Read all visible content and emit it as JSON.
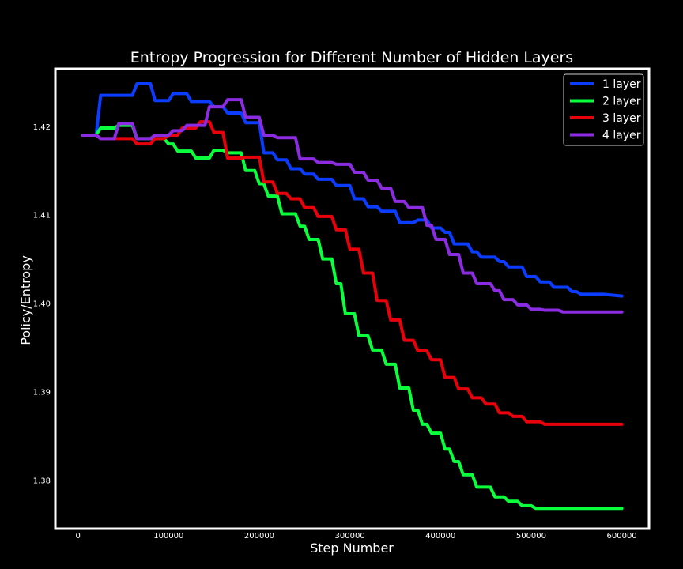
{
  "chart_data": {
    "type": "line",
    "title": "Entropy Progression for Different Number of Hidden Layers",
    "xlabel": "Step Number",
    "ylabel": "Policy/Entropy",
    "xlim": [
      -25000,
      630000
    ],
    "ylim": [
      1.3745,
      1.4265
    ],
    "xticks": [
      0,
      100000,
      200000,
      300000,
      400000,
      500000,
      600000
    ],
    "xtick_labels": [
      "0",
      "100000",
      "200000",
      "300000",
      "400000",
      "500000",
      "600000"
    ],
    "yticks": [
      1.38,
      1.39,
      1.4,
      1.41,
      1.42
    ],
    "ytick_labels": [
      "1.38",
      "1.39",
      "1.40",
      "1.41",
      "1.42"
    ],
    "grid": false,
    "legend_position": "top-right",
    "series": [
      {
        "name": "1 layer",
        "color": "#0a3dff",
        "x": [
          5000,
          20000,
          25000,
          60000,
          65000,
          80000,
          85000,
          100000,
          105000,
          120000,
          125000,
          145000,
          150000,
          160000,
          165000,
          180000,
          185000,
          200000,
          205000,
          215000,
          220000,
          230000,
          235000,
          245000,
          250000,
          260000,
          265000,
          280000,
          285000,
          300000,
          305000,
          315000,
          320000,
          330000,
          335000,
          350000,
          355000,
          370000,
          375000,
          385000,
          390000,
          400000,
          405000,
          410000,
          415000,
          430000,
          435000,
          440000,
          445000,
          460000,
          465000,
          470000,
          475000,
          490000,
          495000,
          505000,
          510000,
          520000,
          525000,
          540000,
          545000,
          550000,
          555000,
          575000,
          580000,
          600000
        ],
        "y": [
          1.419,
          1.419,
          1.4235,
          1.4235,
          1.4248,
          1.4248,
          1.4229,
          1.4229,
          1.4237,
          1.4237,
          1.4228,
          1.4228,
          1.4222,
          1.4222,
          1.4215,
          1.4215,
          1.4204,
          1.4204,
          1.417,
          1.417,
          1.4162,
          1.4162,
          1.4152,
          1.4152,
          1.4146,
          1.4146,
          1.414,
          1.414,
          1.4133,
          1.4133,
          1.4118,
          1.4118,
          1.4109,
          1.4109,
          1.4104,
          1.4104,
          1.4091,
          1.4091,
          1.4094,
          1.4094,
          1.4085,
          1.4085,
          1.408,
          1.408,
          1.4067,
          1.4067,
          1.4058,
          1.4058,
          1.4052,
          1.4052,
          1.4047,
          1.4047,
          1.4041,
          1.4041,
          1.403,
          1.403,
          1.4024,
          1.4024,
          1.4018,
          1.4018,
          1.4013,
          1.4013,
          1.401,
          1.401,
          1.401,
          1.4008
        ]
      },
      {
        "name": "2 layer",
        "color": "#0aff3c",
        "x": [
          5000,
          20000,
          25000,
          40000,
          45000,
          60000,
          65000,
          95000,
          100000,
          105000,
          110000,
          125000,
          130000,
          145000,
          150000,
          160000,
          165000,
          180000,
          185000,
          195000,
          200000,
          205000,
          210000,
          220000,
          225000,
          240000,
          245000,
          250000,
          255000,
          265000,
          270000,
          280000,
          285000,
          290000,
          295000,
          305000,
          310000,
          320000,
          325000,
          335000,
          340000,
          350000,
          355000,
          365000,
          370000,
          375000,
          380000,
          385000,
          390000,
          400000,
          405000,
          410000,
          415000,
          420000,
          425000,
          435000,
          440000,
          455000,
          460000,
          470000,
          475000,
          485000,
          490000,
          500000,
          505000,
          515000,
          520000,
          530000,
          535000,
          545000,
          550000,
          560000,
          565000,
          580000,
          585000,
          600000
        ],
        "y": [
          1.419,
          1.419,
          1.4198,
          1.4198,
          1.4201,
          1.4201,
          1.4186,
          1.4186,
          1.418,
          1.418,
          1.4172,
          1.4172,
          1.4164,
          1.4164,
          1.4173,
          1.4173,
          1.417,
          1.417,
          1.415,
          1.415,
          1.4135,
          1.4135,
          1.4121,
          1.4121,
          1.4101,
          1.4101,
          1.4087,
          1.4087,
          1.4072,
          1.4072,
          1.405,
          1.405,
          1.4022,
          1.4022,
          1.3988,
          1.3988,
          1.3963,
          1.3963,
          1.3947,
          1.3947,
          1.3931,
          1.3931,
          1.3904,
          1.3904,
          1.3879,
          1.3879,
          1.3863,
          1.3863,
          1.3853,
          1.3853,
          1.3835,
          1.3835,
          1.3821,
          1.3821,
          1.3806,
          1.3806,
          1.3792,
          1.3792,
          1.3781,
          1.3781,
          1.3776,
          1.3776,
          1.3771,
          1.3771,
          1.3768,
          1.3768,
          1.3768,
          1.3768,
          1.3768,
          1.3768,
          1.3768,
          1.3768,
          1.3768,
          1.3768,
          1.3768,
          1.3768
        ]
      },
      {
        "name": "3 layer",
        "color": "#e8000b",
        "x": [
          5000,
          20000,
          25000,
          60000,
          65000,
          80000,
          85000,
          95000,
          100000,
          110000,
          115000,
          130000,
          135000,
          145000,
          150000,
          160000,
          165000,
          180000,
          185000,
          200000,
          205000,
          215000,
          220000,
          230000,
          235000,
          245000,
          250000,
          260000,
          265000,
          280000,
          285000,
          295000,
          300000,
          310000,
          315000,
          325000,
          330000,
          340000,
          345000,
          355000,
          360000,
          370000,
          375000,
          385000,
          390000,
          400000,
          405000,
          415000,
          420000,
          430000,
          435000,
          445000,
          450000,
          460000,
          465000,
          475000,
          480000,
          490000,
          495000,
          510000,
          515000,
          525000,
          530000,
          545000,
          550000,
          565000,
          570000,
          580000,
          585000,
          600000
        ],
        "y": [
          1.419,
          1.419,
          1.4186,
          1.4186,
          1.418,
          1.418,
          1.4186,
          1.4186,
          1.419,
          1.419,
          1.4198,
          1.4198,
          1.4205,
          1.4205,
          1.4193,
          1.4193,
          1.4164,
          1.4164,
          1.4165,
          1.4165,
          1.4137,
          1.4137,
          1.4124,
          1.4124,
          1.4118,
          1.4118,
          1.4108,
          1.4108,
          1.4098,
          1.4098,
          1.4083,
          1.4083,
          1.4061,
          1.4061,
          1.4034,
          1.4034,
          1.4003,
          1.4003,
          1.3981,
          1.3981,
          1.3958,
          1.3958,
          1.3946,
          1.3946,
          1.3936,
          1.3936,
          1.3916,
          1.3916,
          1.3903,
          1.3903,
          1.3893,
          1.3893,
          1.3886,
          1.3886,
          1.3876,
          1.3876,
          1.3872,
          1.3872,
          1.3866,
          1.3866,
          1.3863,
          1.3863,
          1.3863,
          1.3863,
          1.3863,
          1.3863,
          1.3863,
          1.3863,
          1.3863,
          1.3863
        ]
      },
      {
        "name": "4 layer",
        "color": "#8b2be2",
        "x": [
          5000,
          20000,
          25000,
          40000,
          45000,
          60000,
          65000,
          80000,
          85000,
          100000,
          105000,
          115000,
          120000,
          140000,
          145000,
          160000,
          165000,
          180000,
          185000,
          200000,
          205000,
          215000,
          220000,
          240000,
          245000,
          260000,
          265000,
          280000,
          285000,
          300000,
          305000,
          315000,
          320000,
          330000,
          335000,
          345000,
          350000,
          360000,
          365000,
          380000,
          385000,
          390000,
          395000,
          405000,
          410000,
          420000,
          425000,
          435000,
          440000,
          455000,
          460000,
          465000,
          470000,
          480000,
          485000,
          495000,
          500000,
          510000,
          515000,
          530000,
          535000,
          540000,
          545000,
          565000,
          570000,
          580000,
          585000,
          600000
        ],
        "y": [
          1.419,
          1.419,
          1.4186,
          1.4186,
          1.4203,
          1.4203,
          1.4186,
          1.4186,
          1.419,
          1.419,
          1.4195,
          1.4195,
          1.4201,
          1.4201,
          1.4222,
          1.4222,
          1.423,
          1.423,
          1.421,
          1.421,
          1.419,
          1.419,
          1.4187,
          1.4187,
          1.4163,
          1.4163,
          1.4159,
          1.4159,
          1.4157,
          1.4157,
          1.4148,
          1.4148,
          1.4139,
          1.4139,
          1.413,
          1.413,
          1.4115,
          1.4115,
          1.4108,
          1.4108,
          1.4088,
          1.4088,
          1.4072,
          1.4072,
          1.4055,
          1.4055,
          1.4034,
          1.4034,
          1.4022,
          1.4022,
          1.4014,
          1.4014,
          1.4004,
          1.4004,
          1.3998,
          1.3998,
          1.3993,
          1.3993,
          1.3992,
          1.3992,
          1.399,
          1.399,
          1.399,
          1.399,
          1.399,
          1.399,
          1.399,
          1.399
        ]
      }
    ]
  }
}
